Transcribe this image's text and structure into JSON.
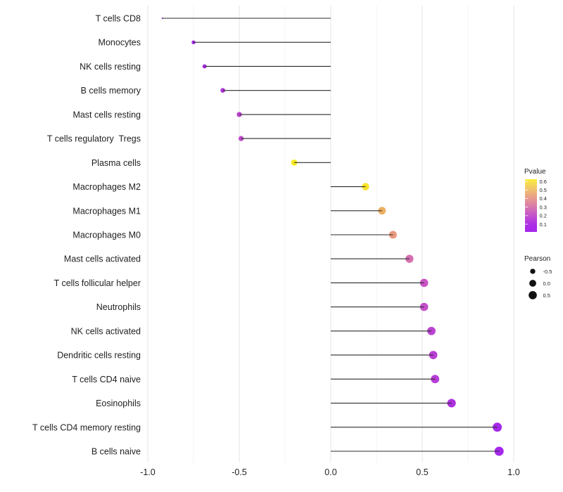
{
  "chart_data": {
    "type": "lollipop",
    "orientation": "horizontal",
    "title": "",
    "xlabel": "",
    "ylabel": "",
    "x_axis": {
      "range": [
        -1.015,
        1.04
      ],
      "major_ticks": [
        -1.0,
        -0.5,
        0.0,
        0.5,
        1.0
      ],
      "tick_labels": [
        "-1.0",
        "-0.5",
        "0.0",
        "0.5",
        "1.0"
      ],
      "minor_ticks": [
        -0.75,
        -0.25,
        0.25,
        0.75
      ]
    },
    "grid": "vertical-only",
    "points": [
      {
        "label": "T cells CD8",
        "pearson": -0.92,
        "pvalue_est": 0.06,
        "color": "#942CDB"
      },
      {
        "label": "Monocytes",
        "pearson": -0.75,
        "pvalue_est": 0.04,
        "color": "#A228E4"
      },
      {
        "label": "NK cells resting",
        "pearson": -0.69,
        "pvalue_est": 0.05,
        "color": "#A52CE0"
      },
      {
        "label": "B cells memory",
        "pearson": -0.59,
        "pvalue_est": 0.1,
        "color": "#AE37D8"
      },
      {
        "label": "Mast cells resting",
        "pearson": -0.5,
        "pvalue_est": 0.16,
        "color": "#B946CE"
      },
      {
        "label": "T cells regulatory  Tregs",
        "pearson": -0.49,
        "pvalue_est": 0.19,
        "color": "#BF4CCA"
      },
      {
        "label": "Plasma cells",
        "pearson": -0.2,
        "pvalue_est": 0.6,
        "color": "#F7E926"
      },
      {
        "label": "Macrophages M2",
        "pearson": 0.19,
        "pvalue_est": 0.58,
        "color": "#F8E32C"
      },
      {
        "label": "Macrophages M1",
        "pearson": 0.28,
        "pvalue_est": 0.44,
        "color": "#ECAF62"
      },
      {
        "label": "Macrophages M0",
        "pearson": 0.34,
        "pvalue_est": 0.37,
        "color": "#E8997E"
      },
      {
        "label": "Mast cells activated",
        "pearson": 0.43,
        "pvalue_est": 0.27,
        "color": "#D56FB1"
      },
      {
        "label": "T cells follicular helper",
        "pearson": 0.51,
        "pvalue_est": 0.21,
        "color": "#C855C5"
      },
      {
        "label": "Neutrophils",
        "pearson": 0.51,
        "pvalue_est": 0.2,
        "color": "#C551C9"
      },
      {
        "label": "NK cells activated",
        "pearson": 0.55,
        "pvalue_est": 0.14,
        "color": "#BC41D3"
      },
      {
        "label": "Dendritic cells resting",
        "pearson": 0.56,
        "pvalue_est": 0.13,
        "color": "#BA3ED6"
      },
      {
        "label": "T cells CD4 naive",
        "pearson": 0.57,
        "pvalue_est": 0.12,
        "color": "#B73CD8"
      },
      {
        "label": "Eosinophils",
        "pearson": 0.66,
        "pvalue_est": 0.09,
        "color": "#AD32DF"
      },
      {
        "label": "T cells CD4 memory resting",
        "pearson": 0.91,
        "pvalue_est": 0.03,
        "color": "#A629EA"
      },
      {
        "label": "B cells naive",
        "pearson": 0.92,
        "pvalue_est": 0.02,
        "color": "#A428EC"
      }
    ],
    "legend_pvalue": {
      "title": "Pvalue",
      "tick_labels": [
        "0.6",
        "0.5",
        "0.4",
        "0.3",
        "0.2",
        "0.1"
      ],
      "gradient_top_to_bottom": [
        "#FAED38",
        "#F3CD63",
        "#EBAB7F",
        "#E28C9B",
        "#D26DB6",
        "#BF4DD0",
        "#AB2FE6",
        "#A527EC"
      ]
    },
    "legend_pearson": {
      "title": "Pearson",
      "entries": [
        {
          "label": "-0.5",
          "value": -0.5
        },
        {
          "label": "0.0",
          "value": 0.0
        },
        {
          "label": "0.5",
          "value": 0.5
        }
      ],
      "dot_color": "#111111"
    },
    "colors": {
      "background": "#FFFFFF",
      "stem": "#2b2b2b",
      "grid_major": "#E6E6E6",
      "grid_minor": "#F3F3F3",
      "axis_text": "#1f1f1f",
      "legend_text": "#1f1f1f"
    }
  }
}
